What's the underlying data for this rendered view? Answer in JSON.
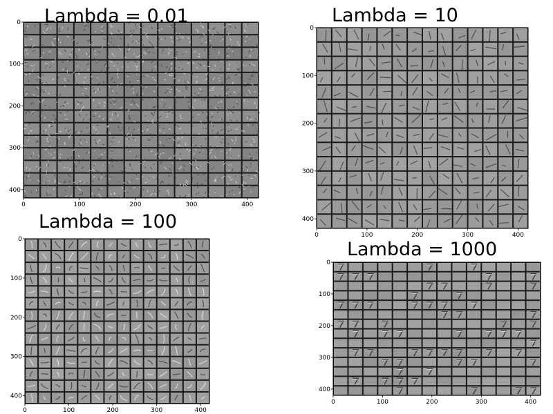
{
  "panels": [
    {
      "id": "p1",
      "title": "Lambda = 0.01",
      "grid": 14,
      "style": "noisy",
      "x_ticks": [
        "0",
        "100",
        "200",
        "300",
        "400"
      ],
      "y_ticks": [
        "0",
        "100",
        "200",
        "300",
        "400"
      ]
    },
    {
      "id": "p2",
      "title": "Lambda = 10",
      "grid": 14,
      "style": "strokes",
      "x_ticks": [
        "0",
        "100",
        "200",
        "300",
        "400"
      ],
      "y_ticks": [
        "0",
        "100",
        "200",
        "300",
        "400"
      ]
    },
    {
      "id": "p3",
      "title": "Lambda = 100",
      "grid": 14,
      "style": "digits-faint",
      "x_ticks": [
        "0",
        "100",
        "200",
        "300",
        "400"
      ],
      "y_ticks": [
        "0",
        "100",
        "200",
        "300",
        "400"
      ]
    },
    {
      "id": "p4",
      "title": "Lambda = 1000",
      "grid": 14,
      "style": "digits-sparse",
      "x_ticks": [
        "0",
        "100",
        "200",
        "300",
        "400"
      ],
      "y_ticks": [
        "0",
        "100",
        "200",
        "300",
        "400"
      ]
    }
  ],
  "colors": {
    "tile_gray": "#9a9a9a",
    "grid_line": "#1a1a1a",
    "stroke_dark": "#3a3a3a",
    "stroke_light": "#e8e8e8"
  }
}
